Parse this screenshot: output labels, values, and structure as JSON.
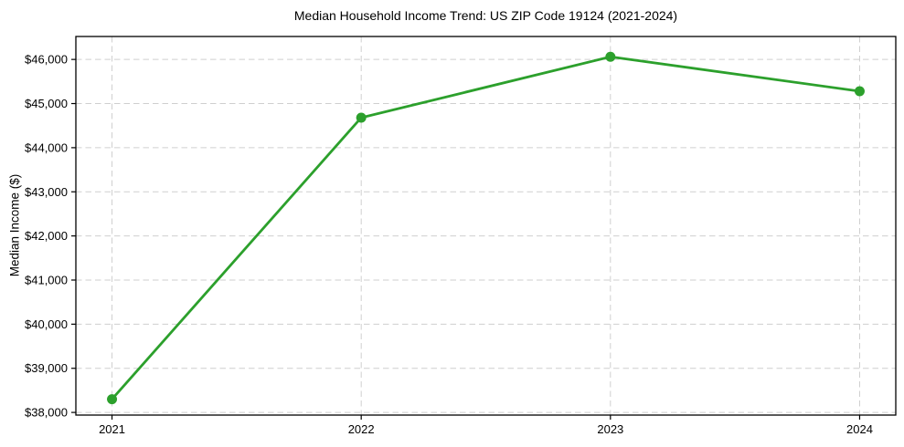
{
  "chart_data": {
    "type": "line",
    "title": "Median Household Income Trend: US ZIP Code 19124 (2021-2024)",
    "xlabel": "",
    "ylabel": "Median Income ($)",
    "x": [
      2021,
      2022,
      2023,
      2024
    ],
    "x_tick_labels": [
      "2021",
      "2022",
      "2023",
      "2024"
    ],
    "series": [
      {
        "name": "Median Household Income",
        "values": [
          38300,
          44680,
          46060,
          45280
        ],
        "color": "#2ca02c",
        "marker": "circle"
      }
    ],
    "yticks": [
      38000,
      39000,
      40000,
      41000,
      42000,
      43000,
      44000,
      45000,
      46000
    ],
    "ytick_prefix": "$",
    "xlim": [
      2020.855,
      2024.145
    ],
    "ylim": [
      37940,
      46520
    ],
    "grid": true,
    "grid_color": "#cfcfcf",
    "line_width": 2.8,
    "marker_radius": 5.5,
    "background": "#ffffff",
    "legend_position": "none"
  }
}
